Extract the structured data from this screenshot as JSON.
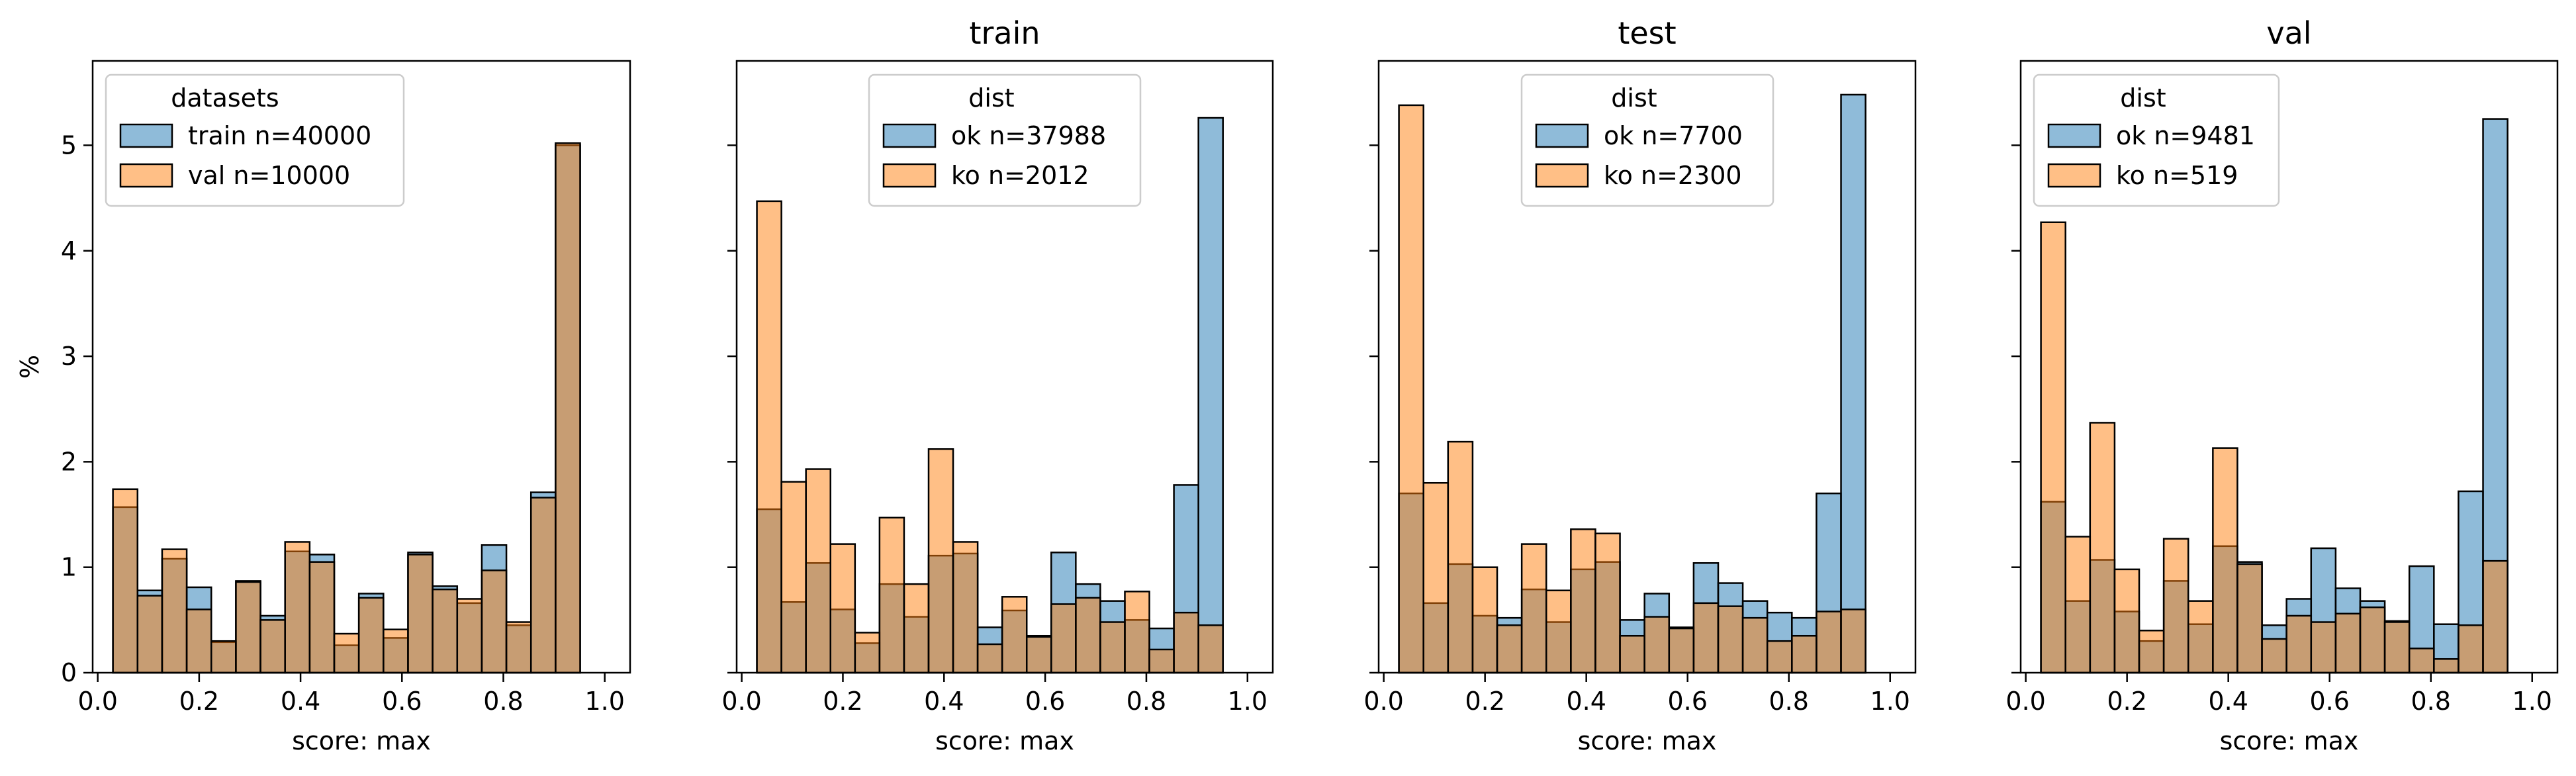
{
  "chart_data": [
    {
      "type": "bar",
      "title": "",
      "xlabel": "score: max",
      "ylabel": "%",
      "xlim": [
        -0.01,
        1.05
      ],
      "ylim": [
        0,
        5.8
      ],
      "xticks": [
        "0.0",
        "0.2",
        "0.4",
        "0.6",
        "0.8",
        "1.0"
      ],
      "yticks": [
        "0",
        "1",
        "2",
        "3",
        "4",
        "5"
      ],
      "bins": {
        "start": 0.03,
        "width": 0.0485,
        "count": 20
      },
      "legend": {
        "title": "datasets",
        "placement": "top-left"
      },
      "series": [
        {
          "name": "train n=40000",
          "color": "#1f77b4",
          "values": [
            1.57,
            0.78,
            1.08,
            0.81,
            0.29,
            0.87,
            0.54,
            1.15,
            1.12,
            0.26,
            0.75,
            0.33,
            1.14,
            0.82,
            0.66,
            1.21,
            0.45,
            1.71,
            5.0,
            0
          ]
        },
        {
          "name": "val n=10000",
          "color": "#ff7f0e",
          "values": [
            1.74,
            0.73,
            1.17,
            0.6,
            0.3,
            0.86,
            0.5,
            1.24,
            1.05,
            0.37,
            0.71,
            0.41,
            1.12,
            0.79,
            0.7,
            0.97,
            0.48,
            1.66,
            5.02,
            0
          ]
        }
      ]
    },
    {
      "type": "bar",
      "title": "train",
      "xlabel": "score: max",
      "ylabel": "",
      "xlim": [
        -0.01,
        1.05
      ],
      "ylim": [
        0,
        5.8
      ],
      "xticks": [
        "0.0",
        "0.2",
        "0.4",
        "0.6",
        "0.8",
        "1.0"
      ],
      "yticks": [
        "0",
        "1",
        "2",
        "3",
        "4",
        "5"
      ],
      "bins": {
        "start": 0.03,
        "width": 0.0485,
        "count": 20
      },
      "legend": {
        "title": "dist",
        "placement": "top-center"
      },
      "series": [
        {
          "name": "ok n=37988",
          "color": "#1f77b4",
          "values": [
            1.55,
            0.67,
            1.04,
            0.6,
            0.28,
            0.84,
            0.53,
            1.11,
            1.13,
            0.43,
            0.59,
            0.35,
            1.14,
            0.84,
            0.68,
            0.5,
            0.42,
            1.78,
            5.26,
            0
          ]
        },
        {
          "name": "ko n=2012",
          "color": "#ff7f0e",
          "values": [
            4.47,
            1.81,
            1.93,
            1.22,
            0.38,
            1.47,
            0.84,
            2.12,
            1.24,
            0.27,
            0.72,
            0.34,
            0.65,
            0.71,
            0.48,
            0.77,
            0.22,
            0.57,
            0.45,
            0
          ]
        }
      ]
    },
    {
      "type": "bar",
      "title": "test",
      "xlabel": "score: max",
      "ylabel": "",
      "xlim": [
        -0.01,
        1.05
      ],
      "ylim": [
        0,
        5.8
      ],
      "xticks": [
        "0.0",
        "0.2",
        "0.4",
        "0.6",
        "0.8",
        "1.0"
      ],
      "yticks": [
        "0",
        "1",
        "2",
        "3",
        "4",
        "5"
      ],
      "bins": {
        "start": 0.03,
        "width": 0.0485,
        "count": 20
      },
      "legend": {
        "title": "dist",
        "placement": "top-center"
      },
      "series": [
        {
          "name": "ok n=7700",
          "color": "#1f77b4",
          "values": [
            1.7,
            0.66,
            1.03,
            0.54,
            0.52,
            0.79,
            0.48,
            0.98,
            1.05,
            0.5,
            0.75,
            0.43,
            1.04,
            0.85,
            0.68,
            0.57,
            0.52,
            1.7,
            5.48,
            0
          ]
        },
        {
          "name": "ko n=2300",
          "color": "#ff7f0e",
          "values": [
            5.38,
            1.8,
            2.19,
            1.0,
            0.45,
            1.22,
            0.78,
            1.36,
            1.32,
            0.35,
            0.53,
            0.42,
            0.66,
            0.63,
            0.52,
            0.3,
            0.35,
            0.58,
            0.6,
            0
          ]
        }
      ]
    },
    {
      "type": "bar",
      "title": "val",
      "xlabel": "score: max",
      "ylabel": "",
      "xlim": [
        -0.01,
        1.05
      ],
      "ylim": [
        0,
        5.8
      ],
      "xticks": [
        "0.0",
        "0.2",
        "0.4",
        "0.6",
        "0.8",
        "1.0"
      ],
      "yticks": [
        "0",
        "1",
        "2",
        "3",
        "4",
        "5"
      ],
      "bins": {
        "start": 0.03,
        "width": 0.0485,
        "count": 20
      },
      "legend": {
        "title": "dist",
        "placement": "top-left"
      },
      "series": [
        {
          "name": "ok n=9481",
          "color": "#1f77b4",
          "values": [
            1.62,
            0.68,
            1.07,
            0.58,
            0.3,
            0.87,
            0.46,
            1.2,
            1.05,
            0.45,
            0.7,
            1.18,
            0.8,
            0.68,
            0.49,
            1.01,
            0.46,
            1.72,
            5.25,
            0
          ]
        },
        {
          "name": "ko n=519",
          "color": "#ff7f0e",
          "values": [
            4.27,
            1.29,
            2.37,
            0.98,
            0.4,
            1.27,
            0.68,
            2.13,
            1.03,
            0.32,
            0.54,
            0.48,
            0.56,
            0.62,
            0.48,
            0.23,
            0.13,
            0.45,
            1.06,
            0
          ]
        }
      ]
    }
  ]
}
